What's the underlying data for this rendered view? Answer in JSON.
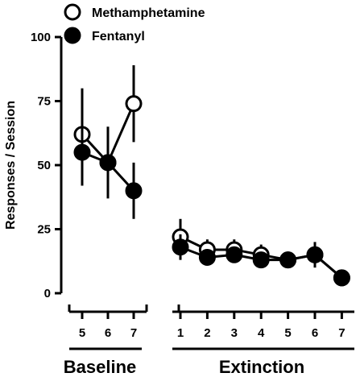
{
  "chart_data": {
    "type": "line",
    "ylabel": "Responses / Session",
    "ylim": [
      0,
      100
    ],
    "yticks": [
      0,
      25,
      50,
      75,
      100
    ],
    "grid": false,
    "legend_position": "top-left",
    "colors": {
      "methamphetamine": "#ffffff",
      "fentanyl": "#000000",
      "stroke": "#000000"
    },
    "groups": [
      {
        "label": "Baseline",
        "x_ticks": [
          "5",
          "6",
          "7"
        ],
        "series": [
          {
            "name": "Methamphetamine",
            "marker": "open-circle",
            "values": [
              62,
              51,
              74
            ],
            "errors": [
              18,
              14,
              15
            ]
          },
          {
            "name": "Fentanyl",
            "marker": "filled-circle",
            "values": [
              55,
              51,
              40
            ],
            "errors": [
              13,
              13,
              11
            ]
          }
        ]
      },
      {
        "label": "Extinction",
        "x_ticks": [
          "1",
          "2",
          "3",
          "4",
          "5",
          "6",
          "7"
        ],
        "series": [
          {
            "name": "Methamphetamine",
            "marker": "open-circle",
            "values": [
              22,
              17,
              17,
              15,
              13,
              15,
              6
            ],
            "errors": [
              7,
              4,
              4,
              4,
              3,
              5,
              2
            ]
          },
          {
            "name": "Fentanyl",
            "marker": "filled-circle",
            "values": [
              18,
              14,
              15,
              13,
              13,
              15,
              6
            ],
            "errors": [
              5,
              3,
              3,
              3,
              3,
              4,
              2
            ]
          }
        ]
      }
    ],
    "legend": [
      {
        "name": "Methamphetamine",
        "marker": "open-circle"
      },
      {
        "name": "Fentanyl",
        "marker": "filled-circle"
      }
    ]
  }
}
